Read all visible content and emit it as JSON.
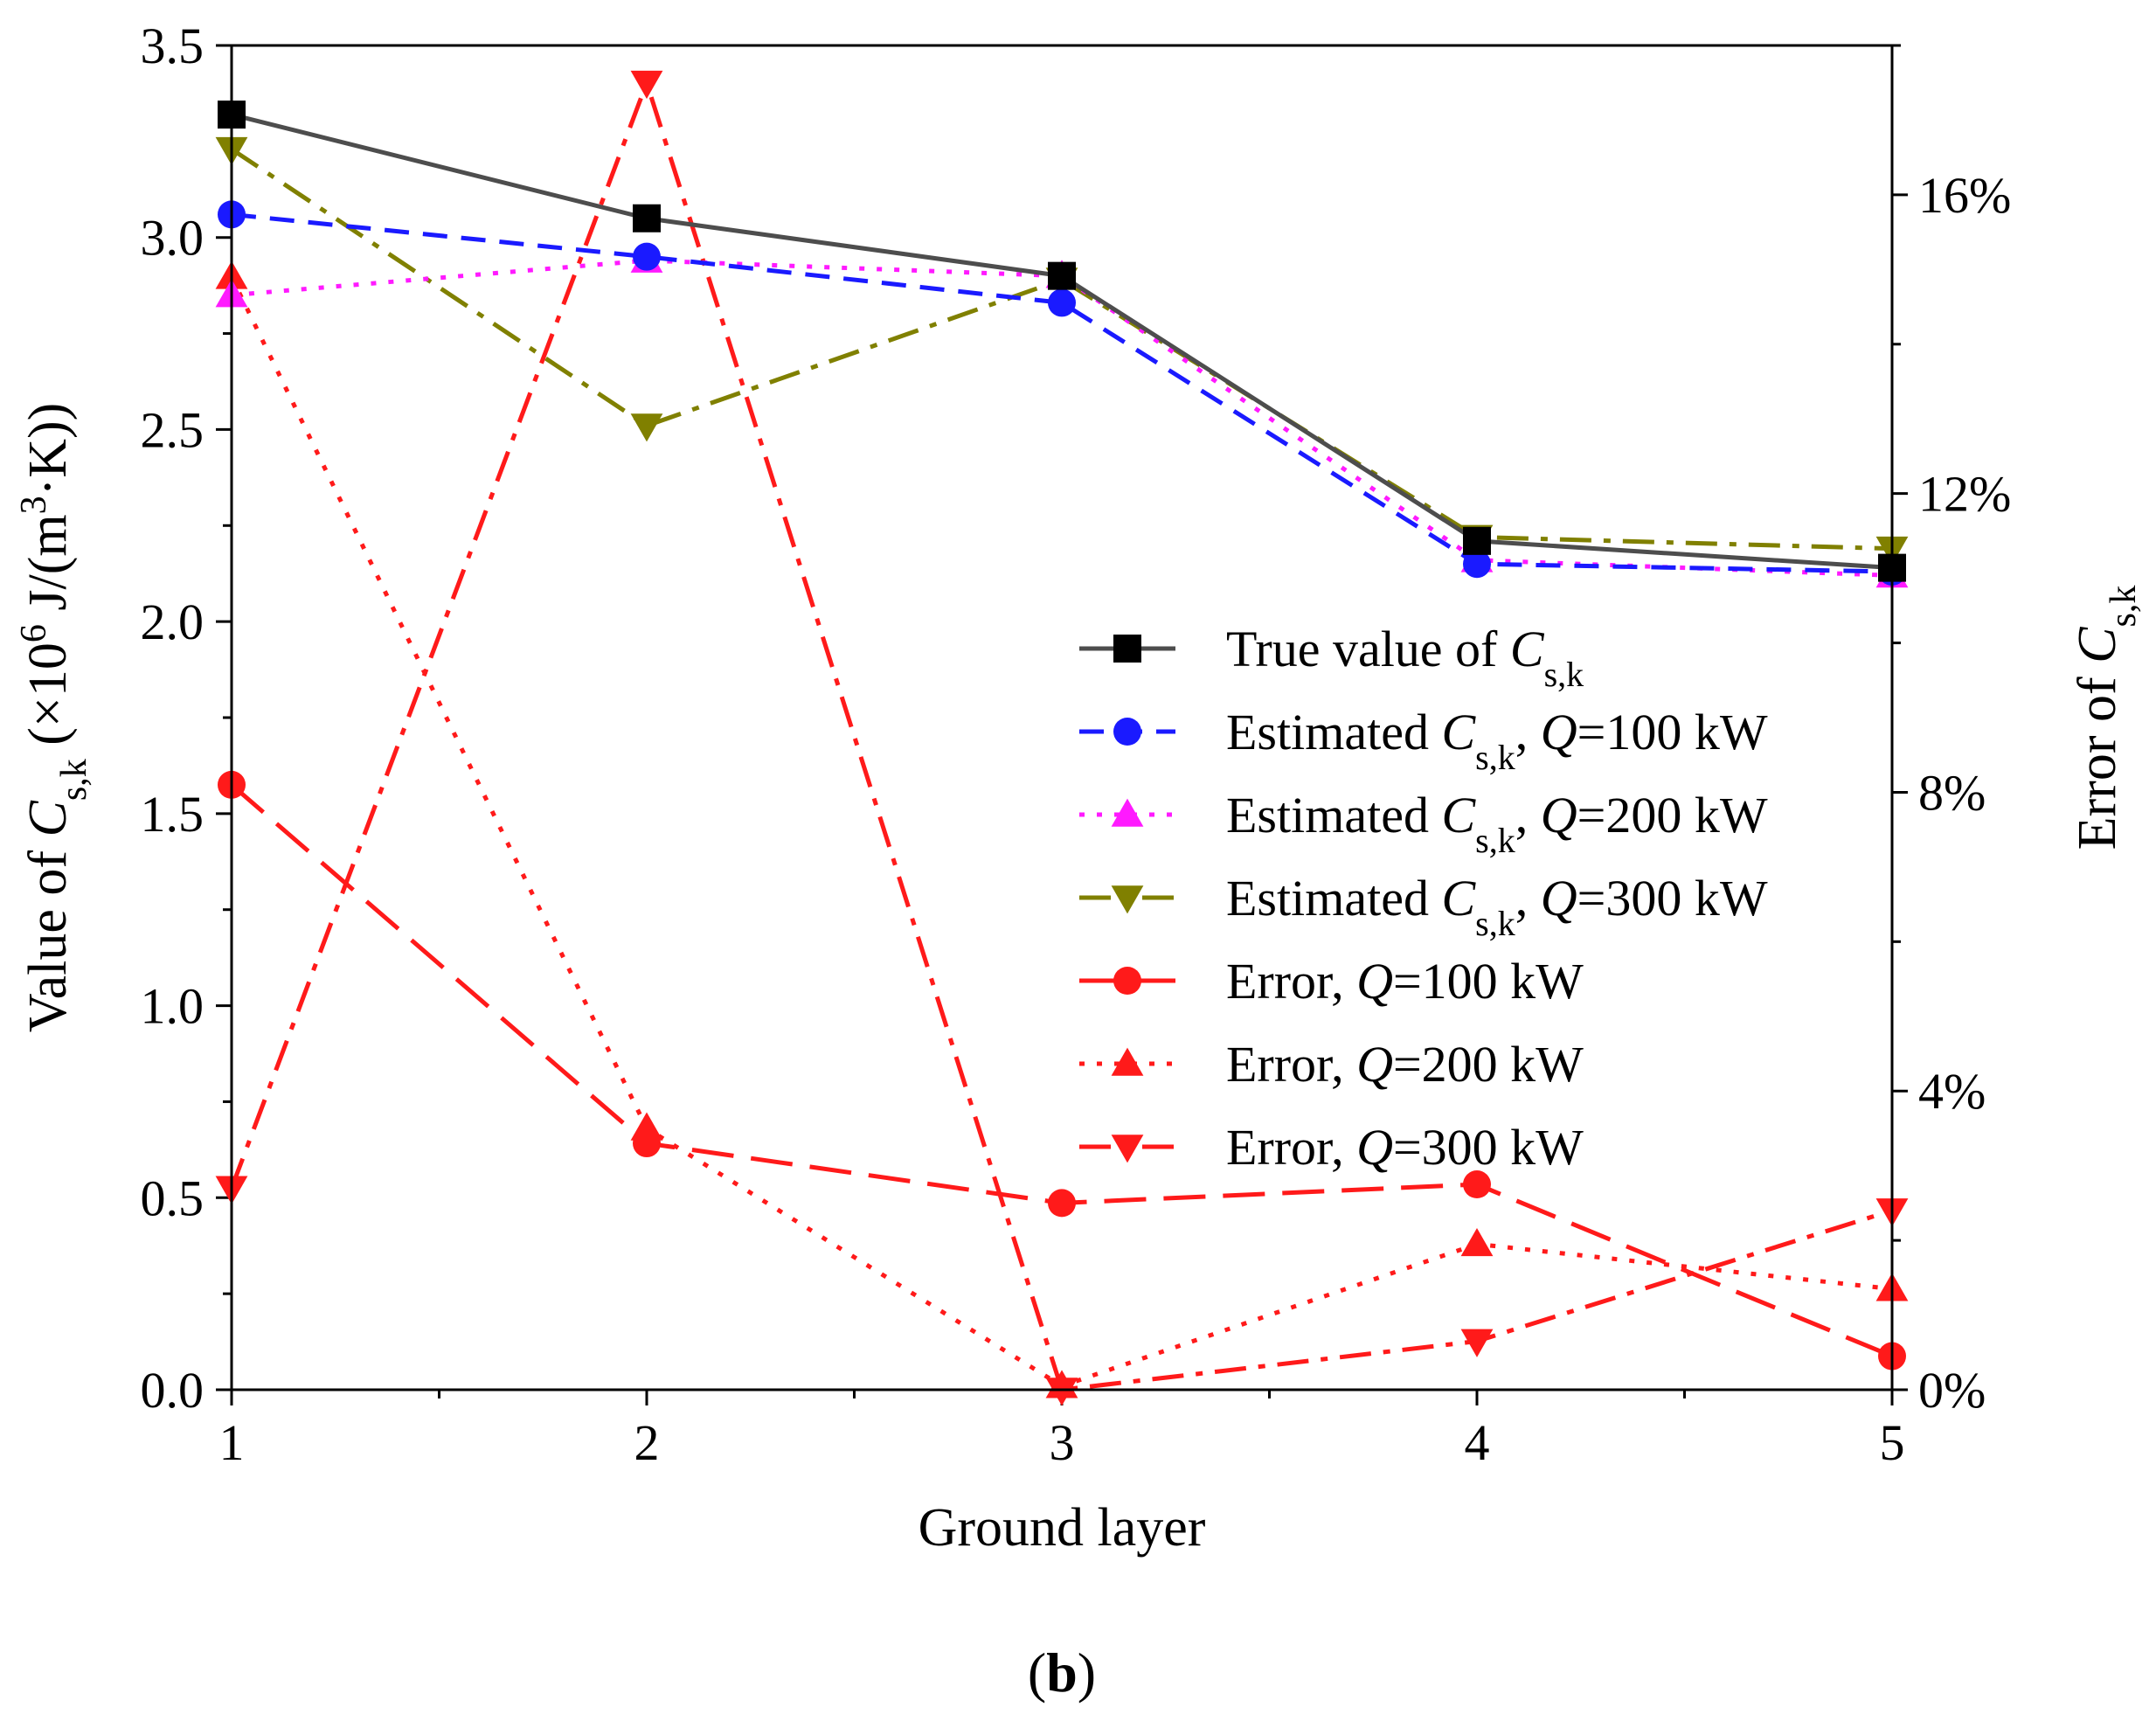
{
  "panel_label": "b",
  "chart_data": {
    "type": "line",
    "x": [
      1,
      2,
      3,
      4,
      5
    ],
    "xlabel": "Ground layer",
    "xlim": [
      1,
      5
    ],
    "x_ticks": [
      "1",
      "2",
      "3",
      "4",
      "5"
    ],
    "y_left": {
      "label": "Value of C_s,k (×10^6 J/(m^3·K))",
      "label_parts": {
        "prefix": "Value of ",
        "symbol": "C",
        "sub": "s,k",
        "mid": " (×10",
        "sup1": "6",
        "mid2": " J/(m",
        "sup2": "3",
        "suffix": "·K))"
      },
      "lim": [
        0,
        3.5
      ],
      "ticks": [
        "0.0",
        "0.5",
        "1.0",
        "1.5",
        "2.0",
        "2.5",
        "3.0",
        "3.5"
      ]
    },
    "y_right": {
      "label": "Error of C_s,k",
      "label_parts": {
        "prefix": "Error of ",
        "symbol": "C",
        "sub": "s,k"
      },
      "lim": [
        0,
        18
      ],
      "ticks": [
        "0%",
        "4%",
        "8%",
        "12%",
        "16%"
      ]
    },
    "legend_position": "center-right",
    "series": [
      {
        "name": "True value of C_s,k",
        "axis": "left",
        "color": "#4d4d4d",
        "dash": "solid",
        "marker": "square",
        "marker_color": "#000000",
        "legend": {
          "prefix": "True value of ",
          "symbol": "C",
          "sub": "s,k",
          "q": "",
          "suffix": ""
        },
        "values": [
          3.32,
          3.05,
          2.9,
          2.21,
          2.14
        ]
      },
      {
        "name": "Estimated C_s,k, Q=100 kW",
        "axis": "left",
        "color": "#1a1aff",
        "dash": "dash",
        "marker": "circle",
        "marker_color": "#1a1aff",
        "legend": {
          "prefix": "Estimated ",
          "symbol": "C",
          "sub": "s,k",
          "q": ", Q",
          "suffix": "=100 kW"
        },
        "values": [
          3.06,
          2.95,
          2.83,
          2.15,
          2.13
        ]
      },
      {
        "name": "Estimated C_s,k, Q=200 kW",
        "axis": "left",
        "color": "#ff1aff",
        "dash": "dot",
        "marker": "triangle-up",
        "marker_color": "#ff1aff",
        "legend": {
          "prefix": "Estimated ",
          "symbol": "C",
          "sub": "s,k",
          "q": ", Q",
          "suffix": "=200 kW"
        },
        "values": [
          2.85,
          2.94,
          2.9,
          2.16,
          2.12
        ]
      },
      {
        "name": "Estimated C_s,k, Q=300 kW",
        "axis": "left",
        "color": "#808000",
        "dash": "dashdot",
        "marker": "triangle-down",
        "marker_color": "#808000",
        "legend": {
          "prefix": "Estimated ",
          "symbol": "C",
          "sub": "s,k",
          "q": ", Q",
          "suffix": "=300 kW"
        },
        "values": [
          3.23,
          2.51,
          2.89,
          2.22,
          2.19
        ]
      },
      {
        "name": "Error, Q=100 kW",
        "axis": "right",
        "color": "#ff1a1a",
        "dash": "longdash",
        "marker": "circle",
        "marker_color": "#ff1a1a",
        "legend": {
          "prefix": "Error",
          "symbol": "",
          "sub": "",
          "q": ", Q",
          "suffix": "=100 kW"
        },
        "values": [
          8.1,
          3.3,
          2.5,
          2.75,
          0.45
        ]
      },
      {
        "name": "Error, Q=200 kW",
        "axis": "right",
        "color": "#ff1a1a",
        "dash": "dot",
        "marker": "triangle-up",
        "marker_color": "#ff1a1a",
        "legend": {
          "prefix": "Error",
          "symbol": "",
          "sub": "",
          "q": ", Q",
          "suffix": "=200 kW"
        },
        "values": [
          14.9,
          3.5,
          0.05,
          1.95,
          1.35
        ]
      },
      {
        "name": "Error, Q=300 kW",
        "axis": "right",
        "color": "#ff1a1a",
        "dash": "dashdot",
        "marker": "triangle-down",
        "marker_color": "#ff1a1a",
        "legend": {
          "prefix": "Error",
          "symbol": "",
          "sub": "",
          "q": ", Q",
          "suffix": "=300 kW"
        },
        "values": [
          2.7,
          17.5,
          0.0,
          0.65,
          2.4
        ]
      }
    ]
  }
}
